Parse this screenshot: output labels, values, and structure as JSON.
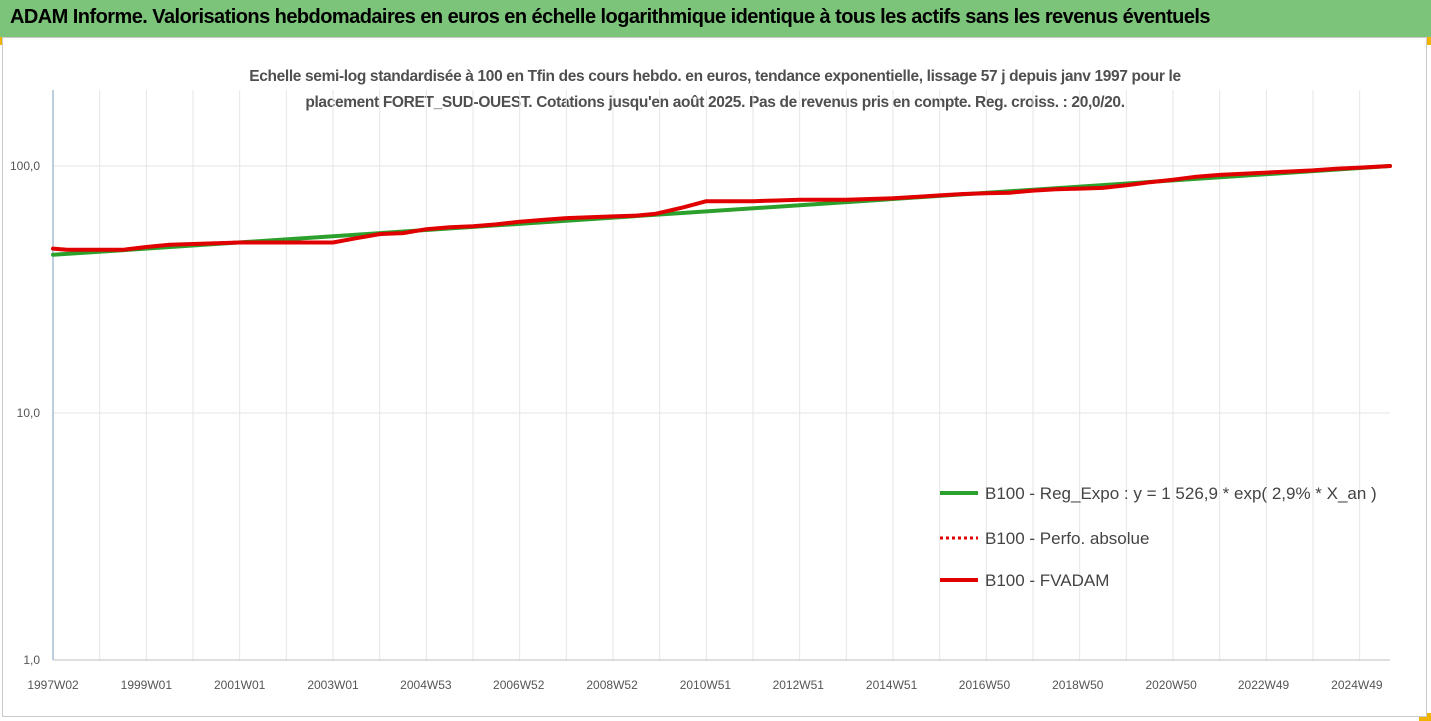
{
  "header": {
    "title": "ADAM Informe. Valorisations hebdomadaires en euros en échelle logarithmique identique à tous les actifs sans les revenus éventuels"
  },
  "colors": {
    "banner": "#7cc47a",
    "accent": "#f0b400",
    "grid": "#e6e6e6"
  },
  "chart_data": {
    "type": "line",
    "title": "Echelle semi-log standardisée à 100 en Tfin des cours hebdo. en euros, tendance exponentielle, lissage 57 j depuis janv 1997 pour le placement FORET_SUD-OUEST. Cotations jusqu'en août 2025. Pas de revenus pris en compte. Reg. croiss. : 20,0/20.",
    "title_lines": [
      "Echelle semi-log standardisée à 100 en Tfin des cours hebdo. en euros, tendance exponentielle, lissage 57 j depuis janv 1997 pour le",
      "placement FORET_SUD-OUEST. Cotations jusqu'en août 2025. Pas de revenus pris en compte. Reg. croiss. : 20,0/20."
    ],
    "y_scale": "log",
    "ylim": [
      1,
      200
    ],
    "y_ticks": [
      1,
      10,
      100
    ],
    "y_tick_labels": [
      "1,0",
      "10,0",
      "100,0"
    ],
    "xlim": [
      1997.0,
      2025.65
    ],
    "x_ticks": [
      1997.0,
      1999.0,
      2001.0,
      2003.0,
      2004.99,
      2006.98,
      2008.98,
      2010.98,
      2012.97,
      2014.97,
      2016.96,
      2018.96,
      2020.96,
      2022.94,
      2024.94
    ],
    "x_tick_labels": [
      "1997W02",
      "1999W01",
      "2001W01",
      "2003W01",
      "2004W53",
      "2006W52",
      "2008W52",
      "2010W51",
      "2012W51",
      "2014W51",
      "2016W50",
      "2018W50",
      "2020W50",
      "2022W49",
      "2024W49"
    ],
    "grid": true,
    "legend_position": "right",
    "series": [
      {
        "name": "B100 - Reg_Expo : y = 1 526,9 * exp( 2,9% *  X_an )",
        "color": "#2ca02c",
        "style": "solid",
        "x": [
          1997.0,
          2025.65
        ],
        "y": [
          43.7,
          100.0
        ]
      },
      {
        "name": "B100 - Perfo. absolue",
        "color": "#e00000",
        "style": "dotted",
        "x": [],
        "y": []
      },
      {
        "name": "B100 - FVADAM",
        "color": "#e00000",
        "style": "solid",
        "x": [
          1997.0,
          1997.3,
          1998.5,
          1999.0,
          1999.5,
          2001.0,
          2002.0,
          2003.0,
          2003.5,
          2004.0,
          2004.5,
          2005.0,
          2005.5,
          2006.0,
          2006.5,
          2007.0,
          2007.5,
          2008.0,
          2008.5,
          2009.0,
          2009.5,
          2009.9,
          2010.5,
          2011.0,
          2011.5,
          2012.0,
          2012.5,
          2013.0,
          2013.5,
          2014.0,
          2014.5,
          2015.0,
          2015.5,
          2016.0,
          2016.5,
          2017.0,
          2017.5,
          2018.0,
          2018.5,
          2019.0,
          2019.5,
          2020.0,
          2020.5,
          2021.0,
          2021.5,
          2022.0,
          2022.5,
          2023.0,
          2023.5,
          2024.0,
          2024.5,
          2025.0,
          2025.65
        ],
        "y": [
          46.3,
          45.8,
          45.8,
          47.0,
          48.0,
          49.0,
          49.0,
          49.0,
          51.0,
          53.0,
          53.5,
          55.5,
          56.5,
          57.0,
          58.0,
          59.5,
          60.5,
          61.5,
          62.0,
          62.5,
          63.0,
          64.0,
          68.0,
          72.0,
          72.0,
          72.0,
          72.5,
          73.0,
          73.0,
          73.0,
          73.5,
          74.0,
          75.0,
          76.0,
          77.0,
          77.5,
          78.0,
          79.5,
          80.5,
          81.0,
          81.5,
          83.5,
          86.0,
          88.0,
          90.5,
          92.0,
          93.0,
          94.0,
          95.0,
          96.0,
          97.5,
          98.5,
          100.0
        ]
      }
    ]
  }
}
